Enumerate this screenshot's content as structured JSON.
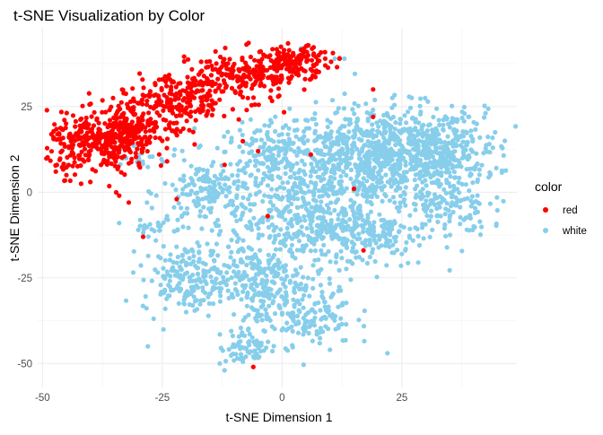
{
  "chart_data": {
    "type": "scatter",
    "title": "t-SNE Visualization by Color",
    "xlabel": "t-SNE Dimension 1",
    "ylabel": "t-SNE Dimension 2",
    "xlim": [
      -51,
      49
    ],
    "ylim": [
      -57,
      48
    ],
    "x_ticks": [
      -50,
      -25,
      0,
      25
    ],
    "y_ticks": [
      -50,
      -25,
      0,
      25
    ],
    "x_tick_labels": [
      "-50",
      "-25",
      "0",
      "25"
    ],
    "y_tick_labels": [
      "-50",
      "-25",
      "0",
      "25"
    ],
    "grid": true,
    "legend": {
      "title": "color",
      "position": "right",
      "entries": [
        {
          "label": "red",
          "color": "#ff0000"
        },
        {
          "label": "white",
          "color": "#87ceeb"
        }
      ]
    },
    "series": [
      {
        "name": "red",
        "color": "#ff0000",
        "regions": [
          {
            "cx": -38,
            "cy": 14,
            "sx": 5.5,
            "sy": 4.5,
            "n": 320
          },
          {
            "cx": -31,
            "cy": 20,
            "sx": 4.0,
            "sy": 3.5,
            "n": 160
          },
          {
            "cx": -21,
            "cy": 27,
            "sx": 5.0,
            "sy": 4.0,
            "n": 200
          },
          {
            "cx": -8,
            "cy": 34,
            "sx": 5.5,
            "sy": 3.5,
            "n": 200
          },
          {
            "cx": 3,
            "cy": 38,
            "sx": 3.5,
            "sy": 2.2,
            "n": 130
          }
        ],
        "points": [
          [
            -47,
            8
          ],
          [
            -45,
            5
          ],
          [
            -40,
            3
          ],
          [
            -34,
            -1
          ],
          [
            -32,
            -3
          ],
          [
            -36,
            24
          ],
          [
            -29,
            -13
          ],
          [
            -24,
            9
          ],
          [
            -22,
            -2
          ],
          [
            -18,
            21
          ],
          [
            -12,
            8
          ],
          [
            -5,
            12
          ],
          [
            -6,
            -51
          ],
          [
            -3,
            -7
          ],
          [
            6,
            11
          ],
          [
            9,
            39
          ],
          [
            12,
            39
          ],
          [
            15,
            1
          ],
          [
            17,
            -17
          ],
          [
            19,
            22
          ],
          [
            19,
            30
          ]
        ]
      },
      {
        "name": "white",
        "color": "#87ceeb",
        "regions": [
          {
            "cx": 20,
            "cy": 10,
            "sx": 11.0,
            "sy": 7.5,
            "n": 850
          },
          {
            "cx": 33,
            "cy": 12,
            "sx": 6.0,
            "sy": 6.0,
            "n": 200
          },
          {
            "cx": 0,
            "cy": 10,
            "sx": 6.0,
            "sy": 5.0,
            "n": 180
          },
          {
            "cx": -15,
            "cy": 0,
            "sx": 5.0,
            "sy": 5.0,
            "n": 160
          },
          {
            "cx": 3,
            "cy": -8,
            "sx": 7.0,
            "sy": 6.0,
            "n": 300
          },
          {
            "cx": 18,
            "cy": -12,
            "sx": 6.0,
            "sy": 5.0,
            "n": 200
          },
          {
            "cx": -20,
            "cy": -25,
            "sx": 4.5,
            "sy": 5.0,
            "n": 180
          },
          {
            "cx": -6,
            "cy": -25,
            "sx": 5.0,
            "sy": 5.0,
            "n": 200
          },
          {
            "cx": 4,
            "cy": -35,
            "sx": 5.5,
            "sy": 5.0,
            "n": 180
          },
          {
            "cx": -7,
            "cy": -45,
            "sx": 3.0,
            "sy": 2.5,
            "n": 70
          },
          {
            "cx": -26,
            "cy": -10,
            "sx": 2.5,
            "sy": 1.5,
            "n": 25
          },
          {
            "cx": 35,
            "cy": -5,
            "sx": 4.0,
            "sy": 4.0,
            "n": 80
          },
          {
            "cx": -30,
            "cy": 10,
            "sx": 2.0,
            "sy": 2.0,
            "n": 20
          }
        ],
        "points": [
          [
            -34,
            -9
          ],
          [
            -30,
            -11
          ],
          [
            -24,
            -7
          ],
          [
            -45,
            8
          ],
          [
            -40,
            3
          ],
          [
            11,
            39
          ],
          [
            13,
            39
          ],
          [
            4,
            42
          ],
          [
            -20,
            -35
          ],
          [
            -28,
            -45
          ],
          [
            -13,
            -50
          ],
          [
            -12,
            -52
          ],
          [
            44,
            13
          ],
          [
            40,
            -10
          ],
          [
            22,
            -47
          ],
          [
            10,
            -46
          ]
        ]
      }
    ]
  }
}
